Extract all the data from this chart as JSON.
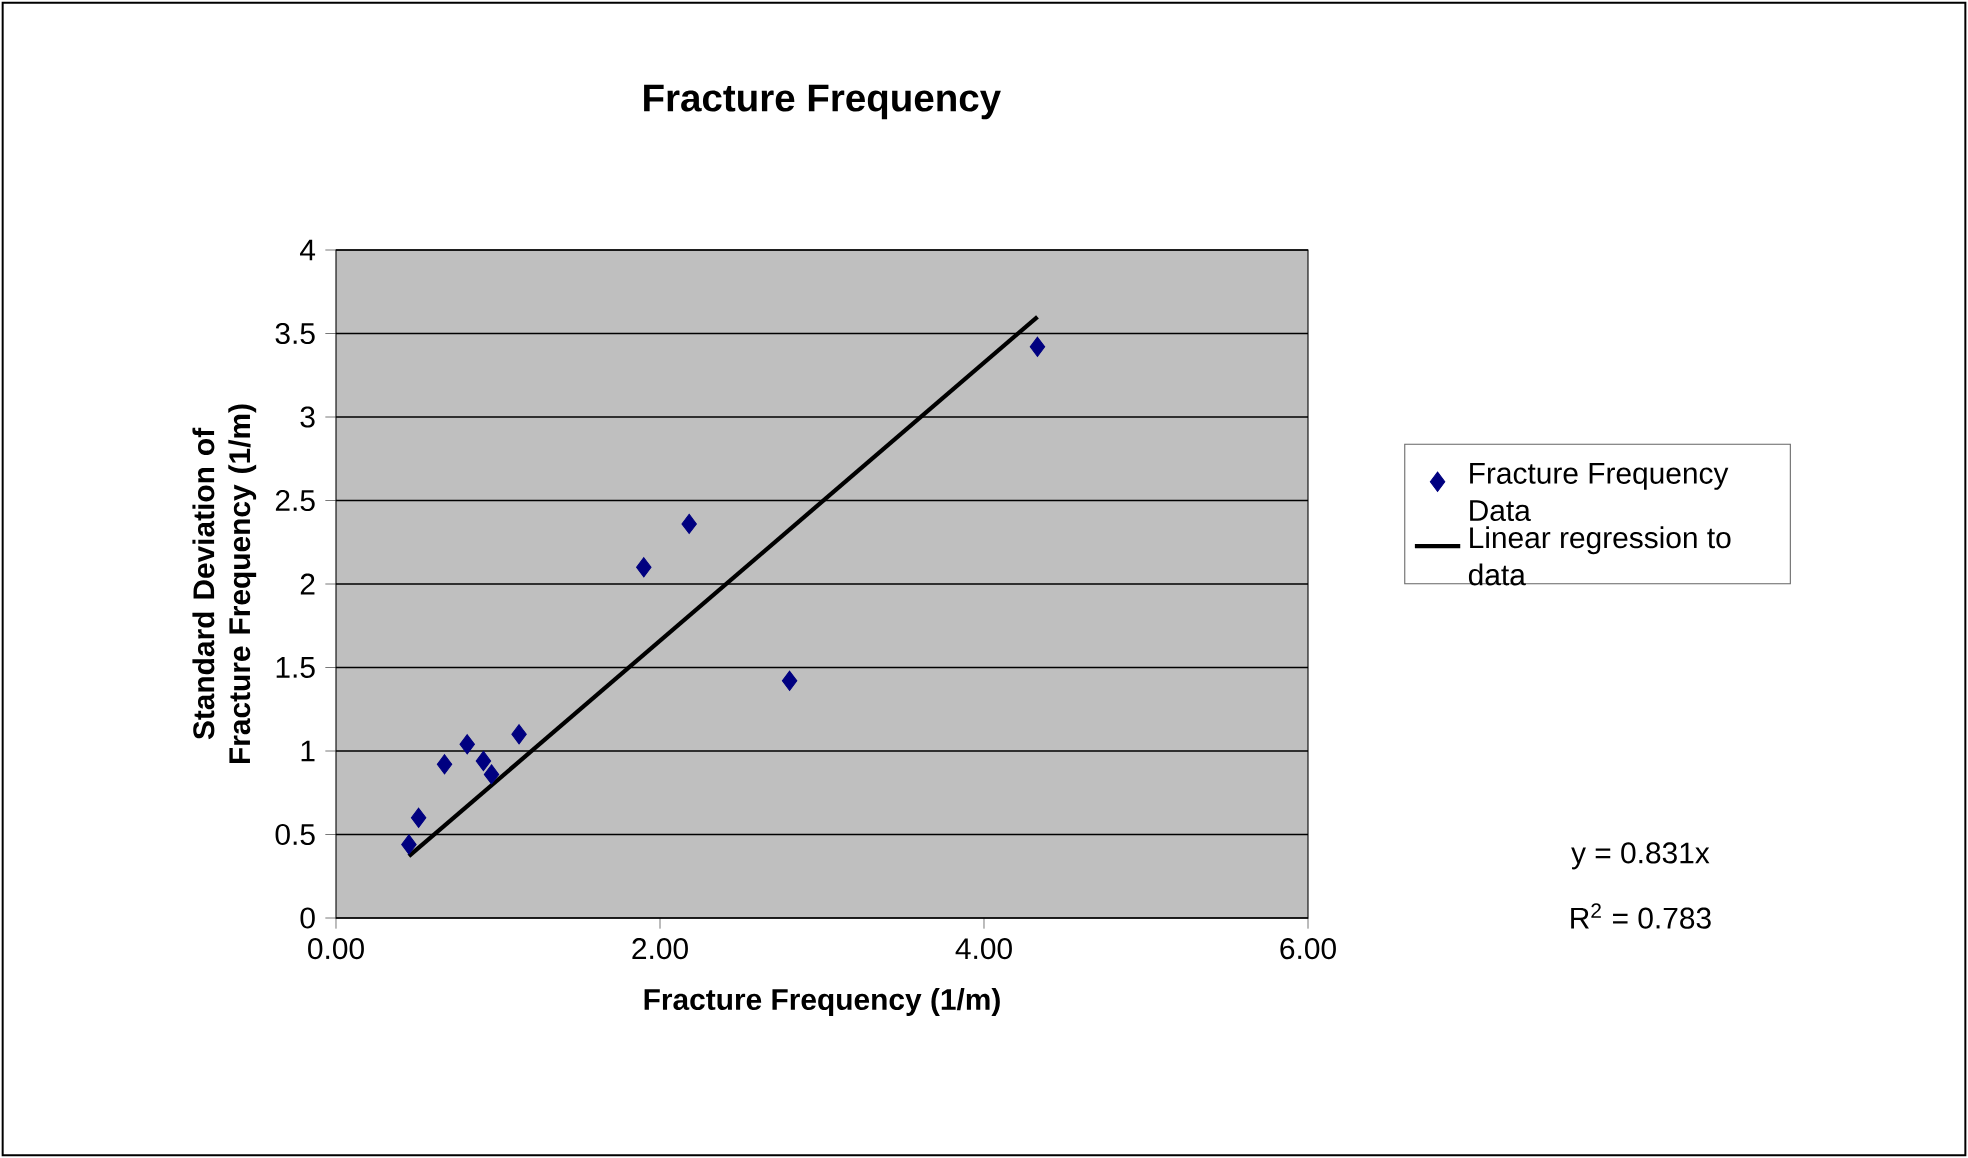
{
  "chart_data": {
    "type": "scatter",
    "title": "Fracture Frequency",
    "xlabel": "Fracture Frequency (1/m)",
    "ylabel": "Standard Deviation of Fracture Frequency (1/m)",
    "xlim": [
      0,
      6
    ],
    "xticks": [
      {
        "value": 0,
        "label": "0.00"
      },
      {
        "value": 2,
        "label": "2.00"
      },
      {
        "value": 4,
        "label": "4.00"
      },
      {
        "value": 6,
        "label": "6.00"
      }
    ],
    "ylim": [
      0,
      4
    ],
    "yticks": [
      0,
      0.5,
      1,
      1.5,
      2,
      2.5,
      3,
      3.5,
      4
    ],
    "grid": "y",
    "legend": "right",
    "series": [
      {
        "name": "Fracture Frequency Data",
        "marker": "diamond",
        "color": "#000080",
        "x": [
          0.45,
          0.51,
          0.67,
          0.81,
          0.91,
          0.96,
          1.13,
          1.9,
          2.18,
          2.8,
          4.33
        ],
        "values": [
          0.44,
          0.6,
          0.92,
          1.04,
          0.94,
          0.86,
          1.1,
          2.1,
          2.36,
          1.42,
          3.42
        ]
      },
      {
        "name": "Linear regression to data",
        "type": "line",
        "marker": "none",
        "color": "#000000",
        "x": [
          0.45,
          4.33
        ],
        "values": [
          0.37,
          3.6
        ]
      }
    ],
    "annotations": [
      "y = 0.831x",
      "R$^{2}$ = 0.783"
    ]
  }
}
